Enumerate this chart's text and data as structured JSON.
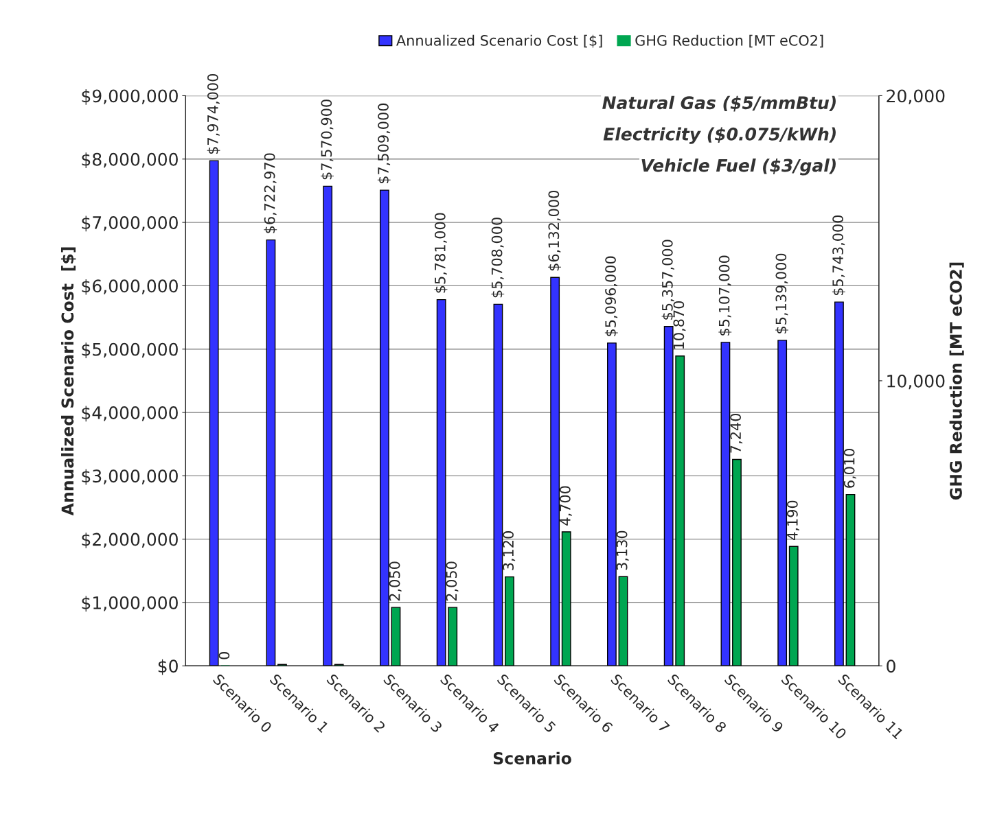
{
  "chart_data": {
    "type": "bar",
    "categories": [
      "Scenario 0",
      "Scenario 1",
      "Scenario 2",
      "Scenario 3",
      "Scenario 4",
      "Scenario 5",
      "Scenario 6",
      "Scenario 7",
      "Scenario 8",
      "Scenario 9",
      "Scenario 10",
      "Scenario 11"
    ],
    "series": [
      {
        "name": "Annualized Scenario Cost [$]",
        "color": "#3333ff",
        "values": [
          7974000,
          6722970,
          7570900,
          7509000,
          5781000,
          5708000,
          6132000,
          5096000,
          5357000,
          5107000,
          5139000,
          5743000
        ],
        "value_labels": [
          "$7,974,000",
          "$6,722,970",
          "$7,570,900",
          "$7,509,000",
          "$5,781,000",
          "$5,708,000",
          "$6,132,000",
          "$5,096,000",
          "$5,357,000",
          "$5,107,000",
          "$5,139,000",
          "$5,743,000"
        ]
      },
      {
        "name": "GHG Reduction [MT eCO2]",
        "color": "#00a651",
        "axis": "y2",
        "values": [
          0,
          50,
          50,
          2050,
          2050,
          3120,
          4700,
          3130,
          10870,
          7240,
          4190,
          6010
        ],
        "value_labels": [
          "0",
          null,
          null,
          "2,050",
          "2,050",
          "3,120",
          "4,700",
          "3,130",
          "10,870",
          "7,240",
          "4,190",
          "6,010"
        ]
      }
    ],
    "xlabel": "Scenario",
    "ylabel": "Annualized Scenario Cost  [$]",
    "y2label": "GHG Reduction [MT eCO2]",
    "ylim": [
      0,
      9000000
    ],
    "yticks": [
      {
        "value": 0,
        "label": "$0"
      },
      {
        "value": 1000000,
        "label": "$1,000,000"
      },
      {
        "value": 2000000,
        "label": "$2,000,000"
      },
      {
        "value": 3000000,
        "label": "$3,000,000"
      },
      {
        "value": 4000000,
        "label": "$4,000,000"
      },
      {
        "value": 5000000,
        "label": "$5,000,000"
      },
      {
        "value": 6000000,
        "label": "$6,000,000"
      },
      {
        "value": 7000000,
        "label": "$7,000,000"
      },
      {
        "value": 8000000,
        "label": "$8,000,000"
      },
      {
        "value": 9000000,
        "label": "$9,000,000"
      }
    ],
    "y2lim": [
      0,
      20000
    ],
    "y2ticks": [
      0,
      {
        "value": 10000,
        "label": "10,000"
      },
      {
        "value": 20000,
        "label": "20,000"
      }
    ],
    "annotations": [
      "Natural Gas ($5/mmBtu)",
      "Electricity ($0.075/kWh)",
      "Vehicle Fuel ($3/gal)"
    ],
    "grid": "y",
    "legend": "top"
  }
}
